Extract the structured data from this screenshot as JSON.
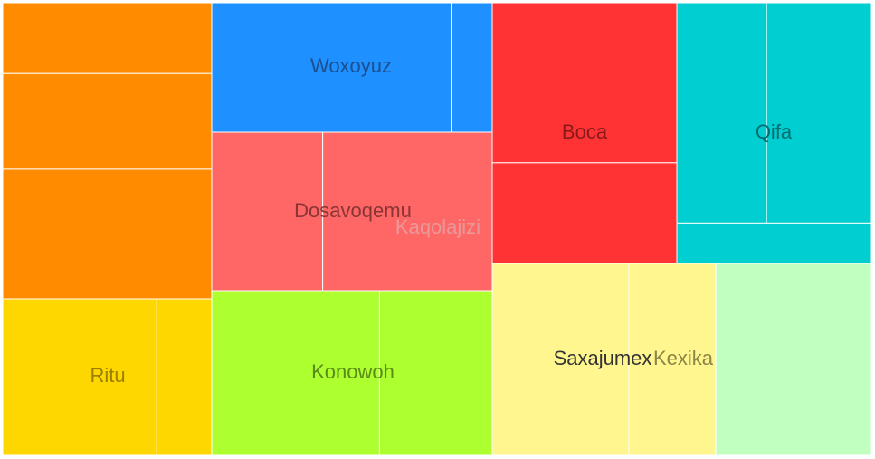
{
  "chart_data": {
    "type": "treemap",
    "title": "",
    "groups": [
      {
        "name": "",
        "color": "#ff8c00",
        "label_color": "",
        "leaves": [
          16.3,
          22.0,
          29.8
        ]
      },
      {
        "name": "Ritu",
        "color": "#ffd700",
        "label_color": "#9a7f00",
        "leaves": [
          29.2,
          10.4
        ]
      },
      {
        "name": "Woxoyuz",
        "color": "#1e90ff",
        "label_color": "#1d4f91",
        "leaves": [
          32.7,
          5.6
        ]
      },
      {
        "name": "Dosavoqemu",
        "color": "#ff6666",
        "label_color": "#8a3535",
        "leaves": [
          17.6,
          26.9
        ]
      },
      {
        "name": "Konowoh",
        "color": "#adff2f",
        "label_color": "#5a8a17",
        "leaves": [
          31.7,
          21.3
        ]
      },
      {
        "name": "Boca",
        "color": "#ff3333",
        "label_color": "#8a1a1a",
        "leaves": [
          31.5,
          19.8
        ]
      },
      {
        "name": "Qifa",
        "color": "#00ced1",
        "label_color": "#006e70",
        "leaves": [
          16.6,
          19.4,
          6.6
        ]
      },
      {
        "name": "Saxajumex",
        "color": "#fff68f",
        "label_color": "#333333",
        "leaves": [
          33.0
        ]
      },
      {
        "name": "Kexika",
        "color": "#fff68f",
        "label_color": "#8a8447",
        "leaves": [
          21.1
        ]
      },
      {
        "name": "Kaqolajizi",
        "color": "#c1ffc1",
        "label_color": "#e89a9a",
        "leaves": [
          37.7
        ]
      }
    ]
  }
}
